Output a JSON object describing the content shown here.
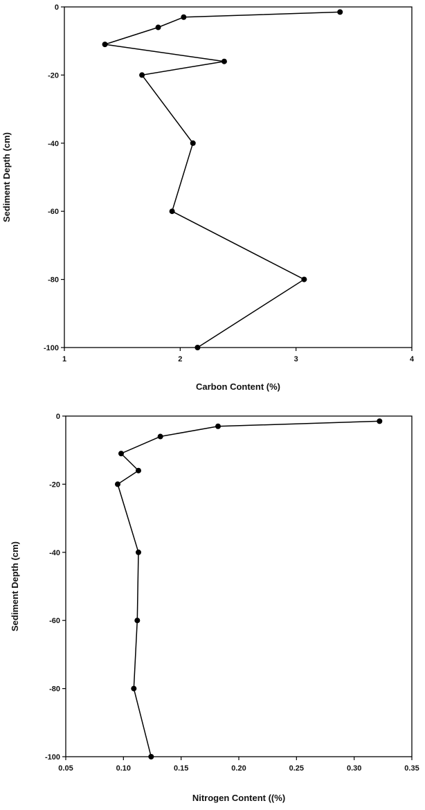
{
  "chart_data": [
    {
      "type": "line",
      "title": "",
      "xlabel": "Carbon Content (%)",
      "ylabel": "Sediment Depth (cm)",
      "xlim": [
        1,
        4
      ],
      "ylim": [
        -100,
        0
      ],
      "xticks": [
        1,
        2,
        3,
        4
      ],
      "xtick_labels": [
        "1",
        "2",
        "3",
        "4"
      ],
      "yticks": [
        0,
        -20,
        -40,
        -60,
        -80,
        -100
      ],
      "ytick_labels": [
        "0",
        "-20",
        "-40",
        "-60",
        "-80",
        "-100"
      ],
      "grid": false,
      "series": [
        {
          "x": [
            3.38,
            2.03,
            1.81,
            1.35,
            2.38,
            1.67,
            2.11,
            1.93,
            3.07,
            2.15
          ],
          "y": [
            -1.5,
            -3,
            -6,
            -11,
            -16,
            -20,
            -40,
            -60,
            -80,
            -100
          ]
        }
      ]
    },
    {
      "type": "line",
      "title": "",
      "xlabel": "Nitrogen Content ((%)",
      "ylabel": "Sediment Depth (cm)",
      "xlim": [
        0.05,
        0.35
      ],
      "ylim": [
        -100,
        0
      ],
      "xticks": [
        0.05,
        0.1,
        0.15,
        0.2,
        0.25,
        0.3,
        0.35
      ],
      "xtick_labels": [
        "0.05",
        "0.10",
        "0.15",
        "0.20",
        "0.25",
        "0.30",
        "0.35"
      ],
      "yticks": [
        0,
        -20,
        -40,
        -60,
        -80,
        -100
      ],
      "ytick_labels": [
        "0",
        "-20",
        "-40",
        "-60",
        "-80",
        "-100"
      ],
      "grid": false,
      "series": [
        {
          "x": [
            0.322,
            0.182,
            0.132,
            0.098,
            0.113,
            0.095,
            0.113,
            0.112,
            0.109,
            0.124
          ],
          "y": [
            -1.5,
            -3,
            -6,
            -11,
            -16,
            -20,
            -40,
            -60,
            -80,
            -100
          ]
        }
      ]
    }
  ]
}
